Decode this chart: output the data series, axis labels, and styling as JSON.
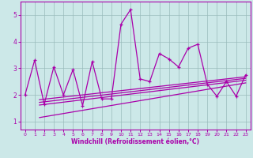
{
  "xlabel": "Windchill (Refroidissement éolien,°C)",
  "background_color": "#cce8e8",
  "line_color": "#aa00aa",
  "grid_color": "#99bbbb",
  "xlim": [
    -0.5,
    23.5
  ],
  "ylim": [
    0.7,
    5.5
  ],
  "xticks": [
    0,
    1,
    2,
    3,
    4,
    5,
    6,
    7,
    8,
    9,
    10,
    11,
    12,
    13,
    14,
    15,
    16,
    17,
    18,
    19,
    20,
    21,
    22,
    23
  ],
  "yticks": [
    1,
    2,
    3,
    4,
    5
  ],
  "main_line_x": [
    0,
    1,
    2,
    3,
    4,
    5,
    6,
    7,
    8,
    9,
    10,
    11,
    12,
    13,
    14,
    15,
    16,
    17,
    18,
    19,
    20,
    21,
    22,
    23
  ],
  "main_line_y": [
    2.0,
    3.3,
    1.65,
    3.05,
    2.0,
    2.95,
    1.6,
    3.25,
    1.85,
    1.85,
    4.65,
    5.2,
    2.6,
    2.5,
    3.55,
    3.35,
    3.05,
    3.75,
    3.9,
    2.4,
    1.95,
    2.5,
    1.95,
    2.75
  ],
  "trend_lines": [
    {
      "x0": 1.5,
      "y0": 1.62,
      "x1": 23,
      "y1": 2.55
    },
    {
      "x0": 1.5,
      "y0": 1.72,
      "x1": 23,
      "y1": 2.62
    },
    {
      "x0": 1.5,
      "y0": 1.82,
      "x1": 23,
      "y1": 2.68
    },
    {
      "x0": 1.5,
      "y0": 1.15,
      "x1": 23,
      "y1": 2.45
    }
  ]
}
